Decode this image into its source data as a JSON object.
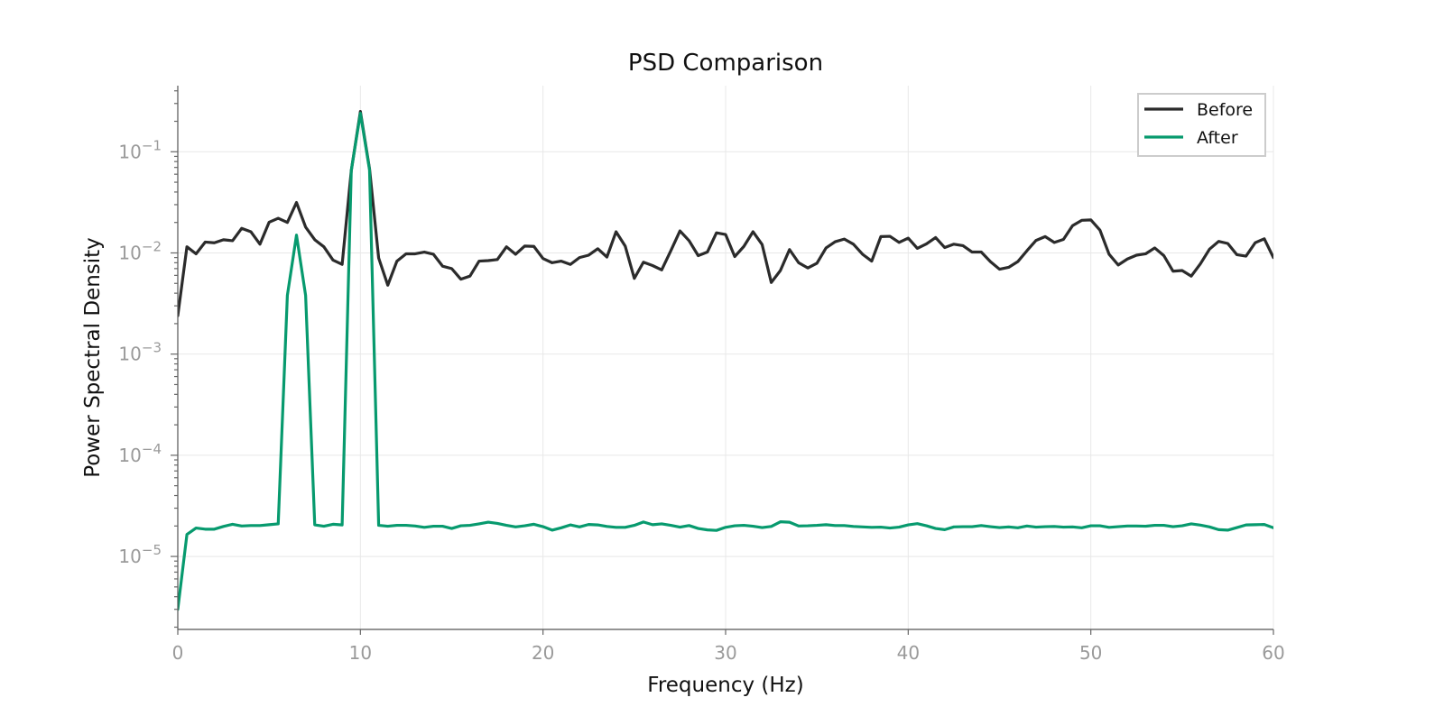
{
  "chart_data": {
    "type": "line",
    "title": "PSD Comparison",
    "xlabel": "Frequency (Hz)",
    "ylabel": "Power Spectral Density",
    "x_scale": "linear",
    "y_scale": "log",
    "xlim": [
      0,
      60
    ],
    "ylim": [
      1.9e-06,
      0.45
    ],
    "x_ticks": [
      0,
      10,
      20,
      30,
      40,
      50,
      60
    ],
    "x_tick_labels": [
      "0",
      "10",
      "20",
      "30",
      "40",
      "50",
      "60"
    ],
    "y_ticks": [
      1e-05,
      0.0001,
      0.001,
      0.01,
      0.1
    ],
    "y_tick_bases": [
      "10",
      "10",
      "10",
      "10",
      "10"
    ],
    "y_tick_exponents": [
      "−5",
      "−4",
      "−3",
      "−2",
      "−1"
    ],
    "grid": true,
    "legend_position": "top-right",
    "x": [
      0,
      0.5,
      1,
      1.5,
      2,
      2.5,
      3,
      3.5,
      4,
      4.5,
      5,
      5.5,
      6,
      6.5,
      7,
      7.5,
      8,
      8.5,
      9,
      9.5,
      10,
      10.5,
      11,
      11.5,
      12,
      12.5,
      13,
      13.5,
      14,
      14.5,
      15,
      15.5,
      16,
      16.5,
      17,
      17.5,
      18,
      18.5,
      19,
      19.5,
      20,
      20.5,
      21,
      21.5,
      22,
      22.5,
      23,
      23.5,
      24,
      24.5,
      25,
      25.5,
      26,
      26.5,
      27,
      27.5,
      28,
      28.5,
      29,
      29.5,
      30,
      30.5,
      31,
      31.5,
      32,
      32.5,
      33,
      33.5,
      34,
      34.5,
      35,
      35.5,
      36,
      36.5,
      37,
      37.5,
      38,
      38.5,
      39,
      39.5,
      40,
      40.5,
      41,
      41.5,
      42,
      42.5,
      43,
      43.5,
      44,
      44.5,
      45,
      45.5,
      46,
      46.5,
      47,
      47.5,
      48,
      48.5,
      49,
      49.5,
      50,
      50.5,
      51,
      51.5,
      52,
      52.5,
      53,
      53.5,
      54,
      54.5,
      55,
      55.5,
      56,
      56.5,
      57,
      57.5,
      58,
      58.5,
      59,
      59.5,
      60
    ],
    "series": [
      {
        "name": "Before",
        "color": "#2b2b2b",
        "values": [
          0.0024,
          0.0115,
          0.0098,
          0.0128,
          0.0126,
          0.0135,
          0.0132,
          0.0175,
          0.0162,
          0.0122,
          0.0201,
          0.022,
          0.02,
          0.0315,
          0.018,
          0.0135,
          0.0115,
          0.0085,
          0.0077,
          0.065,
          0.25,
          0.068,
          0.0089,
          0.0048,
          0.0083,
          0.0098,
          0.0098,
          0.0102,
          0.0097,
          0.0074,
          0.007,
          0.0055,
          0.0059,
          0.0083,
          0.0084,
          0.0086,
          0.0115,
          0.0097,
          0.0117,
          0.0116,
          0.0088,
          0.008,
          0.0083,
          0.0077,
          0.009,
          0.0095,
          0.011,
          0.0091,
          0.0162,
          0.0117,
          0.0056,
          0.0081,
          0.0075,
          0.0068,
          0.0105,
          0.0165,
          0.0132,
          0.0094,
          0.0102,
          0.0158,
          0.0152,
          0.0092,
          0.0116,
          0.0162,
          0.0121,
          0.0051,
          0.0067,
          0.0108,
          0.008,
          0.0071,
          0.0079,
          0.0112,
          0.0129,
          0.0137,
          0.0122,
          0.0097,
          0.0083,
          0.0145,
          0.0146,
          0.0127,
          0.014,
          0.0111,
          0.0123,
          0.0142,
          0.0113,
          0.0122,
          0.0118,
          0.0102,
          0.0102,
          0.0082,
          0.0069,
          0.0072,
          0.0082,
          0.0105,
          0.0133,
          0.0145,
          0.0127,
          0.0136,
          0.0186,
          0.021,
          0.0212,
          0.0168,
          0.0097,
          0.0076,
          0.0087,
          0.0095,
          0.0098,
          0.0112,
          0.0094,
          0.0066,
          0.0067,
          0.0059,
          0.0078,
          0.0109,
          0.013,
          0.0124,
          0.0096,
          0.0093,
          0.0126,
          0.0138,
          0.009
        ]
      },
      {
        "name": "After",
        "color": "#079a6e",
        "values": [
          3e-06,
          1.65e-05,
          1.91e-05,
          1.86e-05,
          1.86e-05,
          1.98e-05,
          2.08e-05,
          2e-05,
          2.02e-05,
          2.02e-05,
          2.06e-05,
          2.1e-05,
          0.0038,
          0.015,
          0.0038,
          2.05e-05,
          1.99e-05,
          2.08e-05,
          2.05e-05,
          0.065,
          0.24,
          0.066,
          2.03e-05,
          1.99e-05,
          2.03e-05,
          2.03e-05,
          2e-05,
          1.94e-05,
          1.99e-05,
          1.99e-05,
          1.89e-05,
          2.01e-05,
          2.03e-05,
          2.1e-05,
          2.18e-05,
          2.12e-05,
          2.03e-05,
          1.96e-05,
          2.01e-05,
          2.08e-05,
          1.97e-05,
          1.82e-05,
          1.92e-05,
          2.05e-05,
          1.96e-05,
          2.07e-05,
          2.05e-05,
          1.98e-05,
          1.94e-05,
          1.94e-05,
          2.03e-05,
          2.19e-05,
          2.06e-05,
          2.1e-05,
          2.03e-05,
          1.95e-05,
          2.02e-05,
          1.89e-05,
          1.83e-05,
          1.81e-05,
          1.94e-05,
          2.01e-05,
          2.03e-05,
          1.99e-05,
          1.93e-05,
          1.98e-05,
          2.2e-05,
          2.18e-05,
          2e-05,
          2.01e-05,
          2.03e-05,
          2.06e-05,
          2.02e-05,
          2.02e-05,
          1.98e-05,
          1.96e-05,
          1.94e-05,
          1.95e-05,
          1.91e-05,
          1.95e-05,
          2.05e-05,
          2.11e-05,
          2.01e-05,
          1.89e-05,
          1.84e-05,
          1.96e-05,
          1.97e-05,
          1.97e-05,
          2.02e-05,
          1.97e-05,
          1.93e-05,
          1.96e-05,
          1.92e-05,
          2e-05,
          1.95e-05,
          1.97e-05,
          1.98e-05,
          1.95e-05,
          1.96e-05,
          1.92e-05,
          2.01e-05,
          2.01e-05,
          1.94e-05,
          1.97e-05,
          2e-05,
          2e-05,
          1.99e-05,
          2.03e-05,
          2.03e-05,
          1.97e-05,
          2.01e-05,
          2.1e-05,
          2.04e-05,
          1.96e-05,
          1.84e-05,
          1.82e-05,
          1.93e-05,
          2.05e-05,
          2.06e-05,
          2.07e-05,
          1.92e-05
        ]
      }
    ]
  }
}
